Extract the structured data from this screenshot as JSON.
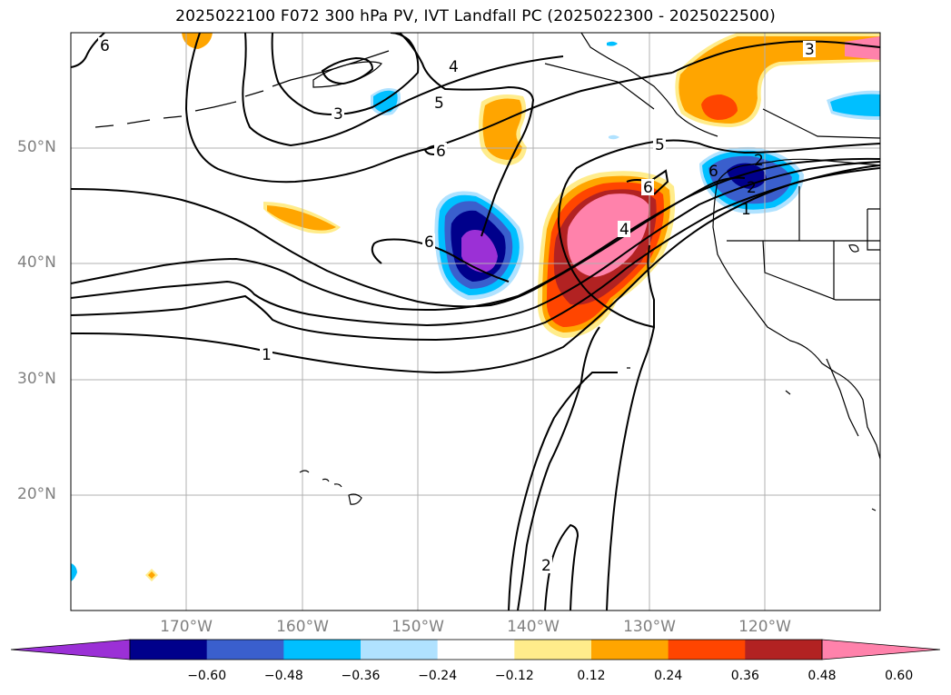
{
  "title": "2025022100 F072 300 hPa PV, IVT Landfall PC (2025022300 - 2025022500)",
  "axes": {
    "lat_ticks": [
      "50°N",
      "40°N",
      "30°N",
      "20°N"
    ],
    "lon_ticks": [
      "170°W",
      "160°W",
      "150°W",
      "140°W",
      "130°W",
      "120°W"
    ]
  },
  "contour_labels": [
    "6",
    "3",
    "4",
    "5",
    "6",
    "6",
    "6",
    "1",
    "2",
    "4",
    "5",
    "6",
    "2",
    "2",
    "1",
    "3"
  ],
  "colorbar": {
    "colors": [
      "#9b30d6",
      "#00008b",
      "#3a5fcd",
      "#00bfff",
      "#b0e2ff",
      "#ffffff",
      "#ffec8b",
      "#ffa500",
      "#ff4500",
      "#b22222",
      "#ff82ab"
    ],
    "tick_labels": [
      "−0.60",
      "−0.48",
      "−0.36",
      "−0.24",
      "−0.12",
      "0.12",
      "0.24",
      "0.36",
      "0.48",
      "0.60"
    ]
  }
}
